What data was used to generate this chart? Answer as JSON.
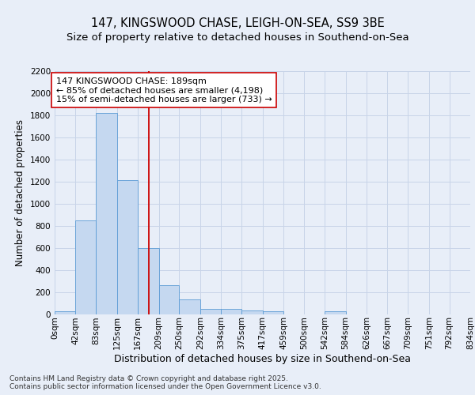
{
  "title1": "147, KINGSWOOD CHASE, LEIGH-ON-SEA, SS9 3BE",
  "title2": "Size of property relative to detached houses in Southend-on-Sea",
  "xlabel": "Distribution of detached houses by size in Southend-on-Sea",
  "ylabel": "Number of detached properties",
  "bar_values": [
    25,
    850,
    1820,
    1210,
    600,
    260,
    130,
    50,
    45,
    30,
    25,
    0,
    0,
    25,
    0,
    0,
    0,
    0,
    0,
    0
  ],
  "bin_edges": [
    0,
    42,
    83,
    125,
    167,
    209,
    250,
    292,
    334,
    375,
    417,
    459,
    500,
    542,
    584,
    626,
    667,
    709,
    751,
    792,
    834
  ],
  "bin_labels": [
    "0sqm",
    "42sqm",
    "83sqm",
    "125sqm",
    "167sqm",
    "209sqm",
    "250sqm",
    "292sqm",
    "334sqm",
    "375sqm",
    "417sqm",
    "459sqm",
    "500sqm",
    "542sqm",
    "584sqm",
    "626sqm",
    "667sqm",
    "709sqm",
    "751sqm",
    "792sqm",
    "834sqm"
  ],
  "bar_color": "#c5d8f0",
  "bar_edge_color": "#5b9bd5",
  "vline_x": 189,
  "vline_color": "#cc0000",
  "ylim": [
    0,
    2200
  ],
  "yticks": [
    0,
    200,
    400,
    600,
    800,
    1000,
    1200,
    1400,
    1600,
    1800,
    2000,
    2200
  ],
  "annotation_line1": "147 KINGSWOOD CHASE: 189sqm",
  "annotation_line2": "← 85% of detached houses are smaller (4,198)",
  "annotation_line3": "15% of semi-detached houses are larger (733) →",
  "annotation_box_color": "#ffffff",
  "annotation_box_edge": "#cc0000",
  "bg_color": "#e8eef8",
  "plot_bg_color": "#e8eef8",
  "footer_text": "Contains HM Land Registry data © Crown copyright and database right 2025.\nContains public sector information licensed under the Open Government Licence v3.0.",
  "title1_fontsize": 10.5,
  "title2_fontsize": 9.5,
  "xlabel_fontsize": 9,
  "ylabel_fontsize": 8.5,
  "tick_fontsize": 7.5,
  "annotation_fontsize": 8,
  "footer_fontsize": 6.5,
  "grid_color": "#c8d4e8"
}
